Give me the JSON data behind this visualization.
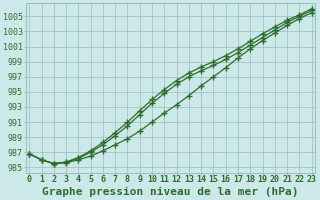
{
  "title": "Graphe pression niveau de la mer (hPa)",
  "xlabel_hours": [
    0,
    1,
    2,
    3,
    4,
    5,
    6,
    7,
    8,
    9,
    10,
    11,
    12,
    13,
    14,
    15,
    16,
    17,
    18,
    19,
    20,
    21,
    22,
    23
  ],
  "line1": [
    986.8,
    986.0,
    985.5,
    985.6,
    986.0,
    986.5,
    987.2,
    988.0,
    988.8,
    989.8,
    991.0,
    992.2,
    993.3,
    994.5,
    995.8,
    997.0,
    998.2,
    999.5,
    1000.7,
    1001.8,
    1002.8,
    1003.8,
    1004.7,
    1005.5
  ],
  "line2": [
    986.8,
    986.0,
    985.5,
    985.7,
    986.2,
    987.0,
    988.0,
    989.2,
    990.5,
    992.0,
    993.5,
    994.8,
    996.0,
    997.0,
    997.8,
    998.5,
    999.3,
    1000.2,
    1001.2,
    1002.2,
    1003.2,
    1004.2,
    1005.0,
    1005.8
  ],
  "line3": [
    986.8,
    986.0,
    985.5,
    985.7,
    986.3,
    987.2,
    988.3,
    989.6,
    991.0,
    992.5,
    994.0,
    995.3,
    996.5,
    997.5,
    998.3,
    999.0,
    999.8,
    1000.7,
    1001.7,
    1002.7,
    1003.6,
    1004.5,
    1005.2,
    1006.0
  ],
  "bg_color": "#cce8e8",
  "grid_color": "#9bbcbc",
  "line_color": "#2d6e2d",
  "yticks": [
    985,
    987,
    989,
    991,
    993,
    995,
    997,
    999,
    1001,
    1003,
    1005
  ],
  "ylim": [
    984.3,
    1006.8
  ],
  "xlim": [
    -0.3,
    23.3
  ],
  "title_fontsize": 8,
  "tick_fontsize": 6,
  "marker": "+",
  "markersize": 4,
  "linewidth": 0.9
}
